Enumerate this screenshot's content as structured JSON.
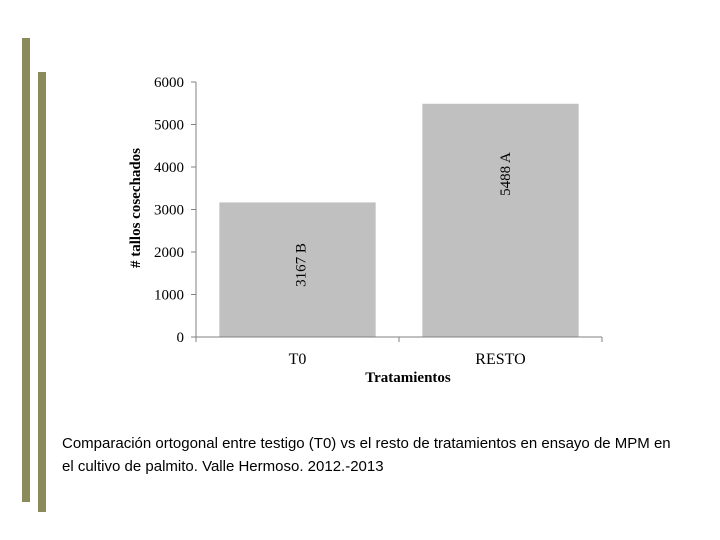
{
  "caption": "Comparación ortogonal entre testigo (T0) vs el resto de tratamientos en ensayo de MPM en el cultivo de palmito. Valle Hermoso. 2012.-2013",
  "colors": {
    "bar": "#c0c0c0",
    "axis": "#808080",
    "decoration": "#8a8a5a"
  },
  "chart_data": {
    "type": "bar",
    "categories": [
      "T0",
      "RESTO"
    ],
    "values": [
      3167,
      5488
    ],
    "data_labels": [
      "3167 B",
      "5488 A"
    ],
    "xlabel": "Tratamientos",
    "ylabel": "# tallos cosechados",
    "ylim": [
      0,
      6000
    ],
    "yticks": [
      0,
      1000,
      2000,
      3000,
      4000,
      5000,
      6000
    ],
    "grid": false
  }
}
